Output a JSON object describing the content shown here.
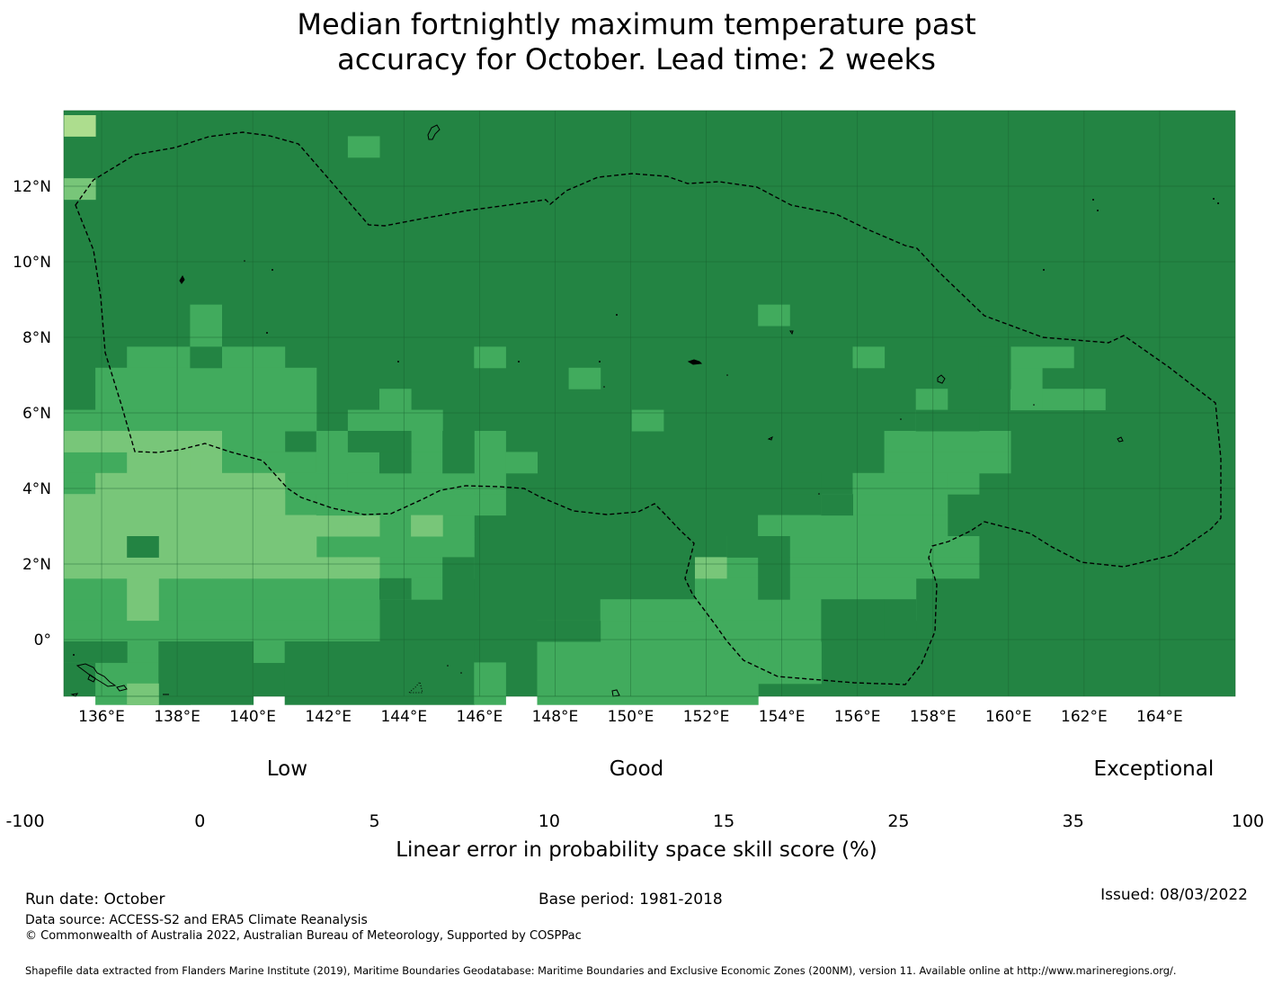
{
  "title_line1": "Median fortnightly maximum temperature past",
  "title_line2": "accuracy for October. Lead time: 2 weeks",
  "map": {
    "lon_labels": [
      "136°E",
      "138°E",
      "140°E",
      "142°E",
      "144°E",
      "146°E",
      "148°E",
      "150°E",
      "152°E",
      "154°E",
      "156°E",
      "158°E",
      "160°E",
      "162°E",
      "164°E"
    ],
    "lon_values": [
      136,
      138,
      140,
      142,
      144,
      146,
      148,
      150,
      152,
      154,
      156,
      158,
      160,
      162,
      164
    ],
    "lat_labels": [
      "12°N",
      "10°N",
      "8°N",
      "6°N",
      "4°N",
      "2°N",
      "0°"
    ],
    "lat_values": [
      12,
      10,
      8,
      6,
      4,
      2,
      0
    ],
    "lon_range": [
      135,
      166
    ],
    "lat_range": [
      -1.5,
      14
    ],
    "colors": {
      "c0": "#ffffff",
      "c1": "#ffffcc",
      "c2": "#d9f0a3",
      "c3": "#addd8e",
      "c4": "#78c679",
      "c5": "#41ab5d",
      "c6": "#238443"
    }
  },
  "colorbar": {
    "categories": [
      {
        "label": "Low",
        "at": 2.5
      },
      {
        "label": "Good",
        "at": 12.5
      },
      {
        "label": "Exceptional",
        "at": 65
      }
    ],
    "bounds": [
      "-100",
      "0",
      "5",
      "10",
      "15",
      "25",
      "35",
      "100"
    ],
    "colors": [
      "#ffffff",
      "#ffffcc",
      "#d9f0a3",
      "#addd8e",
      "#78c679",
      "#41ab5d",
      "#238443"
    ],
    "label": "Linear error in probability space skill score (%)"
  },
  "footer": {
    "run_date": "Run date: October",
    "base_period": "Base period: 1981-2018",
    "issued": "Issued: 08/03/2022",
    "data_source": "Data source: ACCESS-S2 and ERA5 Climate Reanalysis",
    "copyright": "© Commonwealth of Australia 2022, Australian Bureau of Meteorology, Supported by COSPPac",
    "shapefile": "Shapefile data extracted from Flanders Marine Institute (2019), Maritime Boundaries Geodatabase: Maritime Boundaries and Exclusive Economic Zones (200NM), version 11. Available online at http://www.marineregions.org/."
  }
}
